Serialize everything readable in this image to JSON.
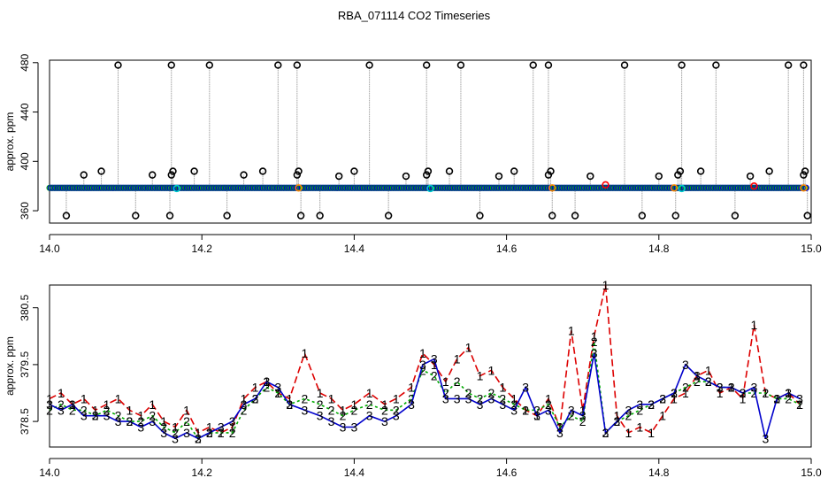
{
  "title": "RBA_071114  CO2 Timeseries",
  "chart_data": [
    {
      "type": "scatter",
      "ylabel": "approx. ppm",
      "xlim": [
        14.0,
        15.0
      ],
      "ylim": [
        350,
        482
      ],
      "x_ticks": [
        14.0,
        14.2,
        14.4,
        14.6,
        14.8,
        15.0
      ],
      "x_tick_labels": [
        "14.0",
        "14.2",
        "14.4",
        "14.6",
        "14.8",
        "15.0"
      ],
      "y_ticks": [
        360,
        400,
        440,
        480
      ],
      "y_tick_labels": [
        "360",
        "400",
        "440",
        "480"
      ],
      "baseline": 378.5,
      "series": [
        {
          "name": "high outliers",
          "marker": "black circle",
          "x": [
            14.09,
            14.16,
            14.21,
            14.3,
            14.325,
            14.42,
            14.495,
            14.54,
            14.635,
            14.655,
            14.755,
            14.83,
            14.875,
            14.97,
            14.99
          ],
          "values": [
            478,
            478,
            478,
            478,
            478,
            478,
            478,
            478,
            478,
            478,
            478,
            478,
            478,
            478,
            478
          ]
        },
        {
          "name": "mid outliers",
          "marker": "black circle",
          "x": [
            14.045,
            14.068,
            14.135,
            14.16,
            14.162,
            14.19,
            14.255,
            14.28,
            14.325,
            14.327,
            14.38,
            14.4,
            14.468,
            14.495,
            14.497,
            14.525,
            14.59,
            14.61,
            14.655,
            14.658,
            14.71,
            14.8,
            14.825,
            14.828,
            14.855,
            14.92,
            14.945,
            14.99,
            14.992
          ],
          "values": [
            389,
            392,
            389,
            389,
            392,
            392,
            389,
            392,
            389,
            392,
            388,
            392,
            388,
            389,
            392,
            392,
            388,
            392,
            389,
            392,
            388,
            388,
            389,
            392,
            392,
            388,
            392,
            389,
            392
          ]
        },
        {
          "name": "low outliers",
          "marker": "black circle",
          "x": [
            14.022,
            14.113,
            14.158,
            14.233,
            14.33,
            14.355,
            14.445,
            14.565,
            14.66,
            14.69,
            14.778,
            14.822,
            14.9,
            14.995
          ],
          "values": [
            356,
            356,
            356,
            356,
            356,
            356,
            356,
            356,
            356,
            356,
            356,
            356,
            356,
            356
          ]
        },
        {
          "name": "cyan highlights",
          "marker": "cyan circle",
          "x": [
            14.167,
            14.5,
            14.83
          ],
          "values": [
            378,
            378,
            378
          ]
        },
        {
          "name": "orange highlights",
          "marker": "orange circle",
          "x": [
            14.327,
            14.66,
            14.82,
            14.99
          ],
          "values": [
            378.5,
            378.5,
            378.5,
            378.5
          ]
        },
        {
          "name": "red highlights",
          "marker": "red circle",
          "x": [
            14.73,
            14.925
          ],
          "values": [
            381,
            380
          ]
        }
      ]
    },
    {
      "type": "line",
      "ylabel": "approx. ppm",
      "xlim": [
        14.0,
        15.0
      ],
      "ylim": [
        378.05,
        380.9
      ],
      "x_ticks": [
        14.0,
        14.2,
        14.4,
        14.6,
        14.8,
        15.0
      ],
      "x_tick_labels": [
        "14.0",
        "14.2",
        "14.4",
        "14.6",
        "14.8",
        "15.0"
      ],
      "y_ticks": [
        378.5,
        379.5,
        380.5
      ],
      "y_tick_labels": [
        "378.5",
        "379.5",
        "380.5"
      ],
      "series": [
        {
          "name": "1",
          "label": "1",
          "color": "#dd0000",
          "dash": "long",
          "x": [
            14.0,
            14.015,
            14.03,
            14.045,
            14.06,
            14.075,
            14.09,
            14.105,
            14.12,
            14.135,
            14.15,
            14.165,
            14.18,
            14.195,
            14.21,
            14.225,
            14.24,
            14.255,
            14.27,
            14.285,
            14.3,
            14.315,
            14.335,
            14.355,
            14.37,
            14.385,
            14.4,
            14.42,
            14.44,
            14.455,
            14.475,
            14.49,
            14.505,
            14.52,
            14.535,
            14.55,
            14.565,
            14.58,
            14.595,
            14.61,
            14.625,
            14.64,
            14.655,
            14.67,
            14.685,
            14.7,
            14.715,
            14.73,
            14.745,
            14.76,
            14.775,
            14.79,
            14.805,
            14.82,
            14.835,
            14.85,
            14.865,
            14.88,
            14.895,
            14.91,
            14.925,
            14.94,
            14.955,
            14.97,
            14.985
          ],
          "values": [
            378.9,
            379.0,
            378.8,
            378.9,
            378.7,
            378.8,
            378.9,
            378.7,
            378.6,
            378.8,
            378.5,
            378.4,
            378.7,
            378.3,
            378.4,
            378.3,
            378.4,
            378.9,
            379.1,
            379.2,
            379.0,
            378.9,
            379.7,
            379.0,
            378.9,
            378.7,
            378.8,
            379.0,
            378.8,
            378.9,
            379.1,
            379.7,
            379.5,
            379.2,
            379.6,
            379.8,
            379.3,
            379.4,
            379.1,
            378.9,
            378.7,
            378.6,
            378.9,
            378.4,
            380.1,
            378.7,
            380.0,
            380.9,
            378.6,
            378.3,
            378.4,
            378.3,
            378.6,
            378.9,
            379.0,
            379.3,
            379.4,
            379.0,
            379.1,
            378.9,
            380.2,
            379.0,
            378.9,
            379.0,
            378.8
          ]
        },
        {
          "name": "2",
          "label": "2",
          "color": "#00aa00",
          "dash": "short",
          "x": [
            14.0,
            14.015,
            14.03,
            14.045,
            14.06,
            14.075,
            14.09,
            14.105,
            14.12,
            14.135,
            14.15,
            14.165,
            14.18,
            14.195,
            14.21,
            14.225,
            14.24,
            14.255,
            14.27,
            14.285,
            14.3,
            14.315,
            14.335,
            14.355,
            14.37,
            14.385,
            14.4,
            14.42,
            14.44,
            14.455,
            14.475,
            14.49,
            14.505,
            14.52,
            14.535,
            14.55,
            14.565,
            14.58,
            14.595,
            14.61,
            14.625,
            14.64,
            14.655,
            14.67,
            14.685,
            14.7,
            14.715,
            14.73,
            14.745,
            14.76,
            14.775,
            14.79,
            14.805,
            14.82,
            14.835,
            14.85,
            14.865,
            14.88,
            14.895,
            14.91,
            14.925,
            14.94,
            14.955,
            14.97,
            14.985
          ],
          "values": [
            378.7,
            378.8,
            378.7,
            378.7,
            378.6,
            378.7,
            378.6,
            378.5,
            378.5,
            378.6,
            378.4,
            378.3,
            378.5,
            378.2,
            378.3,
            378.3,
            378.3,
            378.7,
            378.9,
            379.1,
            379.0,
            378.8,
            378.9,
            378.8,
            378.7,
            378.6,
            378.7,
            378.8,
            378.7,
            378.7,
            378.9,
            379.4,
            379.3,
            379.0,
            379.2,
            379.0,
            378.9,
            379.0,
            378.9,
            378.8,
            378.7,
            378.7,
            378.8,
            378.4,
            378.6,
            378.5,
            379.9,
            378.3,
            378.5,
            378.6,
            378.7,
            378.8,
            378.9,
            379.0,
            379.1,
            379.2,
            379.2,
            379.1,
            379.1,
            379.0,
            379.0,
            379.0,
            378.9,
            378.9,
            378.8
          ]
        },
        {
          "name": "3",
          "label": "3",
          "color": "#0000cc",
          "dash": "solid",
          "x": [
            14.0,
            14.015,
            14.03,
            14.045,
            14.06,
            14.075,
            14.09,
            14.105,
            14.12,
            14.135,
            14.15,
            14.165,
            14.18,
            14.195,
            14.21,
            14.225,
            14.24,
            14.255,
            14.27,
            14.285,
            14.3,
            14.315,
            14.335,
            14.355,
            14.37,
            14.385,
            14.4,
            14.42,
            14.44,
            14.455,
            14.475,
            14.49,
            14.505,
            14.52,
            14.535,
            14.55,
            14.565,
            14.58,
            14.595,
            14.61,
            14.625,
            14.64,
            14.655,
            14.67,
            14.685,
            14.7,
            14.715,
            14.73,
            14.745,
            14.76,
            14.775,
            14.79,
            14.805,
            14.82,
            14.835,
            14.85,
            14.865,
            14.88,
            14.895,
            14.91,
            14.925,
            14.94,
            14.955,
            14.97,
            14.985
          ],
          "values": [
            378.8,
            378.7,
            378.8,
            378.6,
            378.6,
            378.6,
            378.5,
            378.5,
            378.4,
            378.5,
            378.3,
            378.2,
            378.3,
            378.2,
            378.3,
            378.4,
            378.5,
            378.8,
            378.9,
            379.2,
            379.1,
            378.8,
            378.7,
            378.6,
            378.5,
            378.4,
            378.4,
            378.6,
            378.5,
            378.6,
            378.8,
            379.5,
            379.6,
            378.9,
            378.9,
            378.9,
            378.8,
            378.9,
            378.8,
            378.7,
            379.1,
            378.6,
            378.7,
            378.3,
            378.7,
            378.6,
            379.7,
            378.3,
            378.5,
            378.7,
            378.8,
            378.8,
            378.9,
            379.0,
            379.5,
            379.3,
            379.2,
            379.1,
            379.1,
            379.0,
            379.1,
            378.2,
            378.9,
            379.0,
            378.9
          ]
        }
      ]
    }
  ]
}
